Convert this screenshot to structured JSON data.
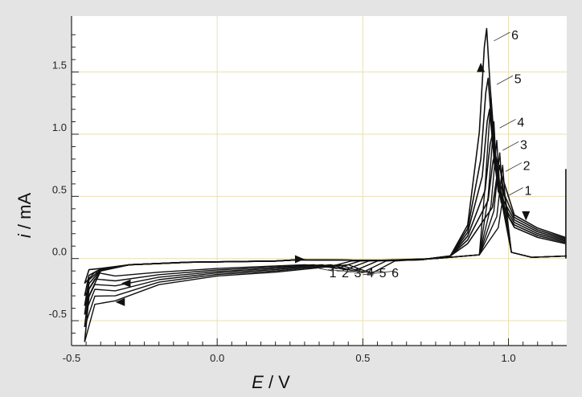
{
  "chart_data": {
    "type": "line",
    "title": "",
    "xlabel": {
      "var": "E",
      "unit": " / V"
    },
    "ylabel": {
      "var": "i",
      "unit": " / mA"
    },
    "xlim": [
      -0.5,
      1.2
    ],
    "ylim": [
      -0.7,
      1.95
    ],
    "grid": true,
    "x_ticks": [
      -0.5,
      0.0,
      0.5,
      1.0
    ],
    "x_tick_labels": [
      "-0.5",
      "0.0",
      "0.5",
      "1.0"
    ],
    "y_ticks": [
      -0.5,
      0.0,
      0.5,
      1.0,
      1.5
    ],
    "y_tick_labels": [
      "-0.5",
      "0.0",
      "0.5",
      "1.0",
      "1.5"
    ],
    "scan_direction": "forward scan from -0.45 V to 1.2 V then reverse",
    "series": [
      {
        "name": "1",
        "forward_peak": [
          0.97,
          0.75
        ],
        "reverse_peak": [
          0.985,
          0.55
        ],
        "cathodic_peak": [
          0.38,
          -0.07
        ],
        "lower_limit_current": -0.2
      },
      {
        "name": "2",
        "forward_peak": [
          0.955,
          0.85
        ],
        "reverse_peak": [
          0.98,
          0.75
        ],
        "cathodic_peak": [
          0.41,
          -0.08
        ],
        "lower_limit_current": -0.3
      },
      {
        "name": "3",
        "forward_peak": [
          0.945,
          1.0
        ],
        "reverse_peak": [
          0.97,
          0.85
        ],
        "cathodic_peak": [
          0.44,
          -0.09
        ],
        "lower_limit_current": -0.38
      },
      {
        "name": "4",
        "forward_peak": [
          0.935,
          1.2
        ],
        "reverse_peak": [
          0.96,
          0.95
        ],
        "cathodic_peak": [
          0.47,
          -0.1
        ],
        "lower_limit_current": -0.45
      },
      {
        "name": "5",
        "forward_peak": [
          0.93,
          1.45
        ],
        "reverse_peak": [
          0.95,
          1.1
        ],
        "cathodic_peak": [
          0.5,
          -0.11
        ],
        "lower_limit_current": -0.55
      },
      {
        "name": "6",
        "forward_peak": [
          0.925,
          1.85
        ],
        "reverse_peak": [
          0.94,
          1.3
        ],
        "cathodic_peak": [
          0.53,
          -0.12
        ],
        "lower_limit_current": -0.67
      }
    ],
    "bottom_labels": [
      "1",
      "2",
      "3",
      "4",
      "5",
      "6"
    ]
  },
  "colors": {
    "frame_background": "#e4e4e4",
    "plot_background": "#ffffff",
    "grid": "#e9dfb3",
    "curve": "#111111"
  }
}
